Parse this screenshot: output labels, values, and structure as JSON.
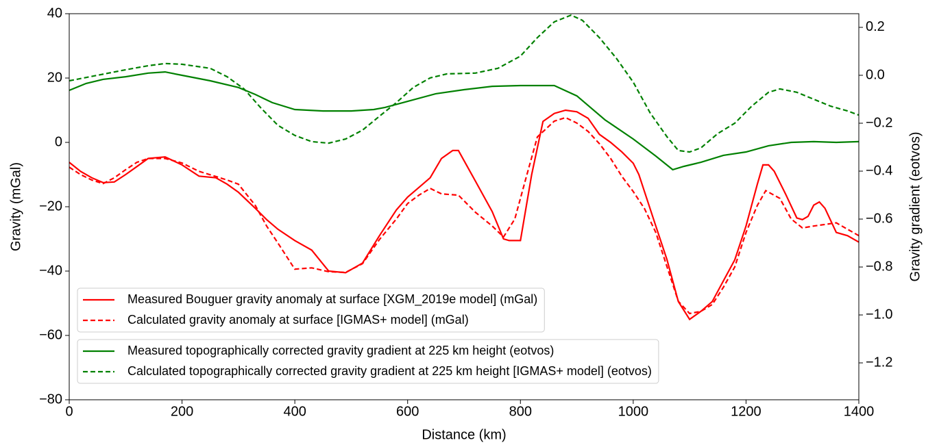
{
  "chart_data": {
    "type": "line",
    "xlabel": "Distance (km)",
    "ylabel": "Gravity (mGal)",
    "y2label": "Gravity gradient (eotvos)",
    "xlim": [
      0,
      1400
    ],
    "xticks": [
      0,
      200,
      400,
      600,
      800,
      1000,
      1200,
      1400
    ],
    "ylim": [
      -80,
      40
    ],
    "yticks": [
      {
        "value": -80,
        "label": "−80"
      },
      {
        "value": -60,
        "label": "−60"
      },
      {
        "value": -40,
        "label": "−40"
      },
      {
        "value": -20,
        "label": "−20"
      },
      0,
      20,
      40
    ],
    "y2lim": [
      -1.354,
      0.257
    ],
    "y2ticks": [
      {
        "value": -1.2,
        "label": "−1.2"
      },
      {
        "value": -1.0,
        "label": "−1.0"
      },
      {
        "value": -0.8,
        "label": "−0.8"
      },
      {
        "value": -0.6,
        "label": "−0.6"
      },
      {
        "value": -0.4,
        "label": "−0.4"
      },
      {
        "value": -0.2,
        "label": "−0.2"
      },
      {
        "value": 0.0,
        "label": "0.0"
      },
      0.2
    ],
    "series": [
      {
        "name": "Measured Bouguer gravity anomaly at surface [XGM_2019e model] (mGal)",
        "color": "#ff0000",
        "linestyle": "solid",
        "axis": "y",
        "x": [
          0,
          20,
          40,
          60,
          80,
          100,
          120,
          140,
          170,
          200,
          230,
          260,
          280,
          300,
          330,
          350,
          370,
          400,
          430,
          460,
          490,
          520,
          550,
          580,
          600,
          620,
          640,
          660,
          680,
          690,
          720,
          750,
          770,
          780,
          800,
          820,
          840,
          860,
          880,
          900,
          920,
          940,
          960,
          980,
          1000,
          1010,
          1040,
          1060,
          1080,
          1100,
          1120,
          1140,
          1160,
          1180,
          1200,
          1220,
          1230,
          1240,
          1250,
          1270,
          1290,
          1300,
          1310,
          1320,
          1330,
          1340,
          1360,
          1380,
          1400
        ],
        "values": [
          -6.2,
          -9,
          -11,
          -12.5,
          -12.3,
          -10,
          -7.5,
          -5,
          -4.5,
          -7,
          -10.5,
          -11,
          -13,
          -15.5,
          -20.5,
          -24,
          -27,
          -30.5,
          -33.5,
          -40,
          -40.5,
          -37.5,
          -29,
          -21,
          -17,
          -14,
          -11,
          -5,
          -2.5,
          -2.5,
          -12,
          -21.5,
          -30,
          -30.5,
          -30.5,
          -10,
          6.5,
          9,
          10,
          9.5,
          7.5,
          2.5,
          0,
          -3,
          -6.5,
          -10,
          -26,
          -36.5,
          -49.5,
          -55,
          -52.5,
          -49.5,
          -43,
          -36.5,
          -26,
          -13,
          -7,
          -7,
          -9,
          -16,
          -23.5,
          -24,
          -23,
          -19.5,
          -18.5,
          -20.5,
          -28,
          -29,
          -31
        ]
      },
      {
        "name": "Calculated gravity anomaly at surface [IGMAS+ model] (mGal)",
        "color": "#ff0000",
        "linestyle": "dashed",
        "axis": "y",
        "x": [
          0,
          20,
          40,
          60,
          80,
          100,
          120,
          140,
          170,
          200,
          230,
          260,
          280,
          300,
          330,
          350,
          370,
          400,
          430,
          460,
          490,
          520,
          550,
          580,
          600,
          620,
          640,
          660,
          690,
          720,
          750,
          770,
          790,
          810,
          830,
          860,
          880,
          900,
          920,
          940,
          960,
          980,
          1000,
          1020,
          1040,
          1060,
          1080,
          1100,
          1120,
          1140,
          1160,
          1180,
          1200,
          1220,
          1235,
          1260,
          1280,
          1300,
          1320,
          1340,
          1360,
          1380,
          1400
        ],
        "values": [
          -7.7,
          -10,
          -11.7,
          -12.8,
          -11,
          -8.5,
          -6.2,
          -5,
          -5,
          -6.4,
          -9,
          -10.6,
          -11.7,
          -13,
          -19.6,
          -26,
          -31.3,
          -39.4,
          -39,
          -40.2,
          -40.4,
          -37.7,
          -30.2,
          -23.8,
          -19,
          -16.4,
          -14.3,
          -16,
          -16.4,
          -21.7,
          -26,
          -29.4,
          -23.8,
          -11,
          1.7,
          6.6,
          7.7,
          6,
          3.4,
          -0.4,
          -5,
          -10.6,
          -15.3,
          -20.6,
          -28,
          -38.7,
          -49.4,
          -53.2,
          -52.5,
          -50.4,
          -45,
          -38.7,
          -28,
          -19.6,
          -15,
          -17.4,
          -23.8,
          -26.6,
          -26,
          -25.5,
          -25,
          -27,
          -29
        ]
      },
      {
        "name": "Measured topographically corrected gravity gradient at 225 km height (eotvos)",
        "color": "#008000",
        "linestyle": "solid",
        "axis": "y2",
        "x": [
          0,
          30,
          60,
          100,
          140,
          170,
          200,
          250,
          300,
          330,
          360,
          400,
          450,
          500,
          540,
          560,
          600,
          650,
          700,
          750,
          800,
          860,
          900,
          950,
          1000,
          1040,
          1070,
          1090,
          1120,
          1160,
          1200,
          1240,
          1280,
          1320,
          1360,
          1400
        ],
        "values": [
          -0.063,
          -0.034,
          -0.017,
          -0.006,
          0.009,
          0.014,
          0,
          -0.023,
          -0.051,
          -0.08,
          -0.114,
          -0.143,
          -0.149,
          -0.149,
          -0.143,
          -0.134,
          -0.109,
          -0.077,
          -0.06,
          -0.046,
          -0.043,
          -0.043,
          -0.086,
          -0.186,
          -0.266,
          -0.337,
          -0.394,
          -0.38,
          -0.363,
          -0.334,
          -0.32,
          -0.294,
          -0.28,
          -0.277,
          -0.28,
          -0.277
        ]
      },
      {
        "name": "Calculated topographically corrected gravity gradient at 225 km height [IGMAS+ model] (eotvos)",
        "color": "#008000",
        "linestyle": "dashed",
        "axis": "y2",
        "x": [
          0,
          50,
          100,
          140,
          170,
          200,
          250,
          280,
          310,
          340,
          370,
          400,
          430,
          460,
          490,
          520,
          550,
          580,
          610,
          640,
          670,
          720,
          760,
          800,
          830,
          860,
          890,
          910,
          940,
          970,
          1000,
          1030,
          1060,
          1080,
          1100,
          1120,
          1150,
          1180,
          1210,
          1240,
          1260,
          1290,
          1320,
          1350,
          1380,
          1400
        ],
        "values": [
          -0.023,
          0,
          0.023,
          0.04,
          0.049,
          0.046,
          0.029,
          -0.006,
          -0.057,
          -0.137,
          -0.209,
          -0.251,
          -0.277,
          -0.283,
          -0.266,
          -0.229,
          -0.171,
          -0.114,
          -0.051,
          -0.011,
          0.006,
          0.009,
          0.029,
          0.08,
          0.157,
          0.223,
          0.251,
          0.229,
          0.157,
          0.071,
          -0.029,
          -0.157,
          -0.257,
          -0.314,
          -0.32,
          -0.303,
          -0.243,
          -0.2,
          -0.129,
          -0.071,
          -0.057,
          -0.071,
          -0.1,
          -0.129,
          -0.149,
          -0.166
        ]
      }
    ]
  }
}
